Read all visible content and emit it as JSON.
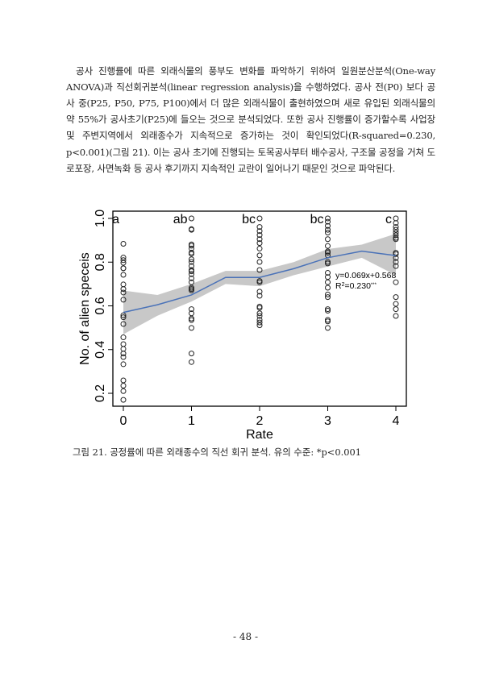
{
  "body": {
    "paragraph": "공사 진행률에 따른 외래식물의 풍부도 변화를 파악하기 위하여 일원분산분석(One-way ANOVA)과 직선회귀분석(linear regression analysis)을 수행하였다. 공사 전(P0) 보다 공사 중(P25, P50, P75, P100)에서 더 많은 외래식물이 출현하였으며 새로 유입된 외래식물의 약 55%가 공사초기(P25)에 들오는 것으로 분석되었다. 또한 공사 진행률이 증가할수록 사업장 및 주변지역에서 외래종수가 지속적으로 증가하는 것이 확인되었다(R-squared=0.230, p<0.001)(그림 21). 이는 공사 초기에 진행되는 토목공사부터 배수공사, 구조물 공정을 거쳐 도로포장, 사면녹화 등 공사 후기까지 지속적인 교란이 일어나기 때문인 것으로 파악된다."
  },
  "caption": "그림 21. 공정률에 따른 외래종수의 직선 회귀 분석. 유의 수준: *p<0.001",
  "page_number": "- 48 -",
  "chart_data": {
    "type": "scatter",
    "xlabel": "Rate",
    "ylabel": "No. of alien speceis",
    "xlim": [
      -0.15,
      4.15
    ],
    "ylim": [
      0.15,
      1.04
    ],
    "xticks": [
      "0",
      "1",
      "2",
      "3",
      "4"
    ],
    "yticks": [
      "0.2",
      "0.4",
      "0.6",
      "0.8",
      "1.0"
    ],
    "group_labels": [
      "a",
      "ab",
      "bc",
      "bc",
      "c"
    ],
    "annotation": {
      "equation": "y=0.069x+0.568",
      "r2_prefix": "R",
      "r2_sup": "2",
      "r2_value": "=0.230",
      "r2_sig": "***"
    },
    "colors": {
      "points": "#222222",
      "line": "#4a72b8",
      "band": "#c8c8c8"
    },
    "points": [
      {
        "x": 0,
        "y": [
          0.884,
          0.821,
          0.809,
          0.797,
          0.772,
          0.772,
          0.742,
          0.698,
          0.677,
          0.661,
          0.628,
          0.557,
          0.548,
          0.517,
          0.456,
          0.425,
          0.403,
          0.382,
          0.366,
          0.333,
          0.259,
          0.235,
          0.21,
          0.17
        ]
      },
      {
        "x": 1,
        "y": [
          1.0,
          0.951,
          0.948,
          0.881,
          0.875,
          0.862,
          0.844,
          0.838,
          0.813,
          0.801,
          0.782,
          0.764,
          0.758,
          0.745,
          0.726,
          0.708,
          0.683,
          0.677,
          0.671,
          0.585,
          0.566,
          0.542,
          0.535,
          0.499,
          0.382,
          0.343
        ]
      },
      {
        "x": 2,
        "y": [
          1.0,
          0.961,
          0.942,
          0.924,
          0.905,
          0.887,
          0.862,
          0.831,
          0.801,
          0.764,
          0.714,
          0.708,
          0.665,
          0.646,
          0.597,
          0.591,
          0.566,
          0.554,
          0.536,
          0.524,
          0.511
        ]
      },
      {
        "x": 3,
        "y": [
          1.0,
          0.985,
          0.966,
          0.948,
          0.935,
          0.905,
          0.874,
          0.849,
          0.843,
          0.831,
          0.801,
          0.794,
          0.751,
          0.732,
          0.708,
          0.683,
          0.652,
          0.64,
          0.585,
          0.578,
          0.536,
          0.529,
          0.499
        ]
      },
      {
        "x": 4,
        "y": [
          1.0,
          0.979,
          0.961,
          0.948,
          0.935,
          0.923,
          0.911,
          0.905,
          0.843,
          0.837,
          0.819,
          0.801,
          0.782,
          0.708,
          0.64,
          0.609,
          0.585,
          0.554
        ]
      }
    ],
    "smooth": {
      "x": [
        0,
        0.5,
        1,
        1.5,
        2,
        2.5,
        3,
        3.5,
        4
      ],
      "y": [
        0.57,
        0.605,
        0.65,
        0.73,
        0.73,
        0.77,
        0.82,
        0.85,
        0.83
      ],
      "upper": [
        0.67,
        0.65,
        0.7,
        0.76,
        0.76,
        0.8,
        0.86,
        0.88,
        0.93
      ],
      "lower": [
        0.47,
        0.555,
        0.62,
        0.7,
        0.69,
        0.74,
        0.78,
        0.82,
        0.74
      ]
    }
  }
}
